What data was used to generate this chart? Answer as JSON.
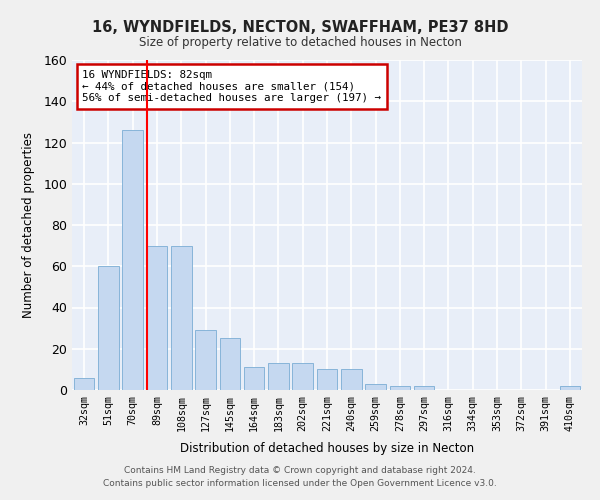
{
  "title": "16, WYNDFIELDS, NECTON, SWAFFHAM, PE37 8HD",
  "subtitle": "Size of property relative to detached houses in Necton",
  "xlabel": "Distribution of detached houses by size in Necton",
  "ylabel": "Number of detached properties",
  "categories": [
    "32sqm",
    "51sqm",
    "70sqm",
    "89sqm",
    "108sqm",
    "127sqm",
    "145sqm",
    "164sqm",
    "183sqm",
    "202sqm",
    "221sqm",
    "240sqm",
    "259sqm",
    "278sqm",
    "297sqm",
    "316sqm",
    "334sqm",
    "353sqm",
    "372sqm",
    "391sqm",
    "410sqm"
  ],
  "values": [
    6,
    60,
    126,
    70,
    70,
    29,
    25,
    11,
    13,
    13,
    10,
    10,
    3,
    2,
    2,
    0,
    0,
    0,
    0,
    0,
    2
  ],
  "bar_color": "#c5d8f0",
  "bar_edge_color": "#7aadd4",
  "background_color": "#e8eef8",
  "grid_color": "#ffffff",
  "annotation_line1": "16 WYNDFIELDS: 82sqm",
  "annotation_line2": "← 44% of detached houses are smaller (154)",
  "annotation_line3": "56% of semi-detached houses are larger (197) →",
  "annotation_box_color": "#ffffff",
  "annotation_box_edge_color": "#cc0000",
  "red_line_x": 2.58,
  "ylim": [
    0,
    160
  ],
  "yticks": [
    0,
    20,
    40,
    60,
    80,
    100,
    120,
    140,
    160
  ],
  "footer1": "Contains HM Land Registry data © Crown copyright and database right 2024.",
  "footer2": "Contains public sector information licensed under the Open Government Licence v3.0."
}
